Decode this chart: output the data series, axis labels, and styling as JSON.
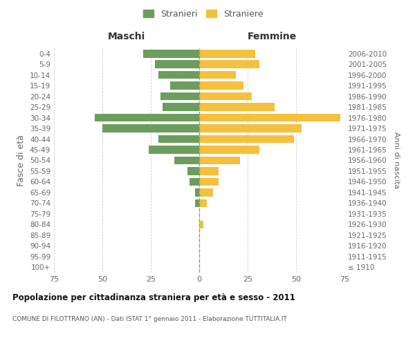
{
  "age_groups": [
    "100+",
    "95-99",
    "90-94",
    "85-89",
    "80-84",
    "75-79",
    "70-74",
    "65-69",
    "60-64",
    "55-59",
    "50-54",
    "45-49",
    "40-44",
    "35-39",
    "30-34",
    "25-29",
    "20-24",
    "15-19",
    "10-14",
    "5-9",
    "0-4"
  ],
  "birth_years": [
    "≤ 1910",
    "1911-1915",
    "1916-1920",
    "1921-1925",
    "1926-1930",
    "1931-1935",
    "1936-1940",
    "1941-1945",
    "1946-1950",
    "1951-1955",
    "1956-1960",
    "1961-1965",
    "1966-1970",
    "1971-1975",
    "1976-1980",
    "1981-1985",
    "1986-1990",
    "1991-1995",
    "1996-2000",
    "2001-2005",
    "2006-2010"
  ],
  "maschi": [
    0,
    0,
    0,
    0,
    0,
    0,
    2,
    2,
    5,
    6,
    13,
    26,
    21,
    50,
    54,
    19,
    20,
    15,
    21,
    23,
    29
  ],
  "femmine": [
    0,
    0,
    0,
    0,
    2,
    0,
    4,
    7,
    10,
    10,
    21,
    31,
    49,
    53,
    73,
    39,
    27,
    23,
    19,
    31,
    29
  ],
  "color_maschi": "#6b9e5e",
  "color_femmine": "#f5c03e",
  "xlim": 75,
  "title": "Popolazione per cittadinanza straniera per età e sesso - 2011",
  "subtitle": "COMUNE DI FILOTTRANO (AN) - Dati ISTAT 1° gennaio 2011 - Elaborazione TUTTITALIA.IT",
  "ylabel_left": "Fasce di età",
  "ylabel_right": "Anni di nascita",
  "legend_maschi": "Stranieri",
  "legend_femmine": "Straniere",
  "header_maschi": "Maschi",
  "header_femmine": "Femmine",
  "background_color": "#ffffff",
  "grid_color": "#cccccc"
}
